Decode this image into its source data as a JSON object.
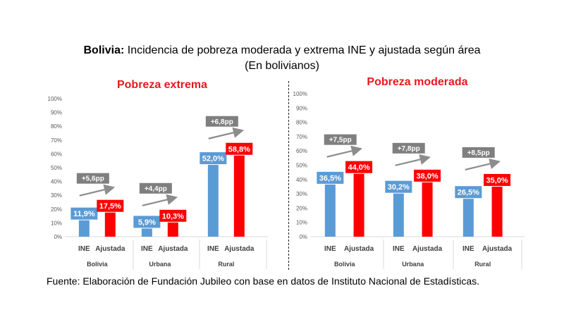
{
  "header": {
    "title_bold": "Bolivia:",
    "title_rest": " Incidencia de pobreza moderada y extrema INE y ajustada según área",
    "subtitle": "(En bolivianos)"
  },
  "source": "Fuente: Elaboración de Fundación Jubileo con base en datos de Instituto Nacional de Estadísticas.",
  "colors": {
    "ine": "#5b9bd5",
    "ajustada": "#ff0000",
    "delta_box": "#7f7f7f",
    "panel_title": "#e8181e"
  },
  "chart_data": [
    {
      "type": "bar",
      "title": "Pobreza extrema",
      "ylim": [
        0,
        100
      ],
      "yticks": [
        "0%",
        "10%",
        "20%",
        "30%",
        "40%",
        "50%",
        "60%",
        "70%",
        "80%",
        "90%",
        "100%"
      ],
      "groups": [
        {
          "name": "Bolivia",
          "bars": [
            {
              "label": "INE",
              "value": 11.9,
              "text": "11,9%"
            },
            {
              "label": "Ajustada",
              "value": 17.5,
              "text": "17,5%"
            }
          ],
          "delta": "+5,6pp"
        },
        {
          "name": "Urbana",
          "bars": [
            {
              "label": "INE",
              "value": 5.9,
              "text": "5,9%"
            },
            {
              "label": "Ajustada",
              "value": 10.3,
              "text": "10,3%"
            }
          ],
          "delta": "+4,4pp"
        },
        {
          "name": "Rural",
          "bars": [
            {
              "label": "INE",
              "value": 52.0,
              "text": "52,0%"
            },
            {
              "label": "Ajustada",
              "value": 58.8,
              "text": "58,8%"
            }
          ],
          "delta": "+6,8pp"
        }
      ]
    },
    {
      "type": "bar",
      "title": "Pobreza moderada",
      "ylim": [
        0,
        100
      ],
      "yticks": [
        "0%",
        "10%",
        "20%",
        "30%",
        "40%",
        "50%",
        "60%",
        "70%",
        "80%",
        "90%",
        "100%"
      ],
      "groups": [
        {
          "name": "Bolivia",
          "bars": [
            {
              "label": "INE",
              "value": 36.5,
              "text": "36,5%"
            },
            {
              "label": "Ajustada",
              "value": 44.0,
              "text": "44,0%"
            }
          ],
          "delta": "+7,5pp"
        },
        {
          "name": "Urbana",
          "bars": [
            {
              "label": "INE",
              "value": 30.2,
              "text": "30,2%"
            },
            {
              "label": "Ajustada",
              "value": 38.0,
              "text": "38,0%"
            }
          ],
          "delta": "+7,8pp"
        },
        {
          "name": "Rural",
          "bars": [
            {
              "label": "INE",
              "value": 26.5,
              "text": "26,5%"
            },
            {
              "label": "Ajustada",
              "value": 35.0,
              "text": "35,0%"
            }
          ],
          "delta": "+8,5pp"
        }
      ]
    }
  ]
}
